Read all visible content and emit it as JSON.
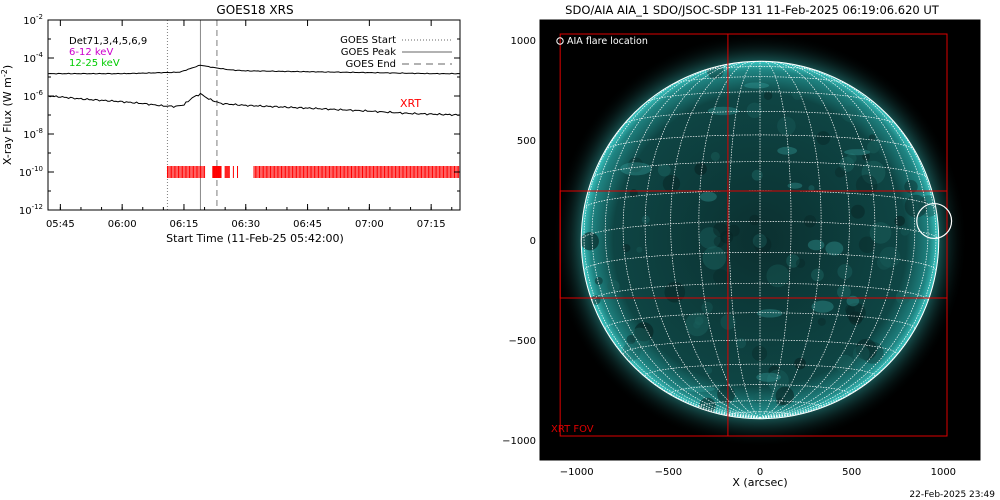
{
  "footer_timestamp": "22-Feb-2025 23:49",
  "chart_data": [
    {
      "type": "line",
      "title": "GOES18 XRS",
      "xlabel": "Start Time (11-Feb-25 05:42:00)",
      "ylabel_main": "X-ray Flux (W m",
      "ylabel_sup": "-2",
      "ylabel_close": ")",
      "y_scale": "log",
      "ylim": [
        1e-12,
        0.01
      ],
      "xlim": [
        "05:42",
        "07:22"
      ],
      "x_ticks": [
        "05:45",
        "06:00",
        "06:15",
        "06:30",
        "06:45",
        "07:00",
        "07:15"
      ],
      "y_ticks": [
        {
          "base": "10",
          "exp": "-2",
          "value": 0.01
        },
        {
          "base": "10",
          "exp": "-4",
          "value": 0.0001
        },
        {
          "base": "10",
          "exp": "-6",
          "value": 1e-06
        },
        {
          "base": "10",
          "exp": "-8",
          "value": 1e-08
        },
        {
          "base": "10",
          "exp": "-10",
          "value": 1e-10
        },
        {
          "base": "10",
          "exp": "-12",
          "value": 1e-12
        }
      ],
      "info_labels": [
        {
          "text": "Det71,3,4,5,6,9",
          "color": "#000000"
        },
        {
          "text": "6-12 keV",
          "color": "#cc00cc"
        },
        {
          "text": "12-25 keV",
          "color": "#00cc00"
        }
      ],
      "legend_position": "top-right",
      "legend": [
        {
          "label": "GOES Start",
          "style": "dotted",
          "time": "06:11"
        },
        {
          "label": "GOES Peak",
          "style": "solid",
          "time": "06:19"
        },
        {
          "label": "GOES End",
          "style": "dashed",
          "time": "06:23"
        }
      ],
      "series": [
        {
          "color": "#000000",
          "x": [
            "05:42",
            "05:50",
            "06:00",
            "06:10",
            "06:14",
            "06:17",
            "06:19",
            "06:22",
            "06:26",
            "06:30",
            "06:45",
            "07:00",
            "07:15",
            "07:22"
          ],
          "y": [
            1.5e-05,
            1.5e-05,
            1.5e-05,
            1.7e-05,
            1.8e-05,
            3e-05,
            4.2e-05,
            3.2e-05,
            2.4e-05,
            2.1e-05,
            1.9e-05,
            1.7e-05,
            1.5e-05,
            1.5e-05
          ]
        },
        {
          "color": "#000000",
          "x": [
            "05:42",
            "05:45",
            "05:50",
            "06:00",
            "06:05",
            "06:10",
            "06:13",
            "06:15",
            "06:17",
            "06:19",
            "06:21",
            "06:24",
            "06:30",
            "06:45",
            "07:00",
            "07:10",
            "07:22"
          ],
          "y": [
            1e-06,
            9e-07,
            7e-07,
            5e-07,
            4e-07,
            3e-07,
            2.8e-07,
            3.5e-07,
            8e-07,
            1.3e-06,
            7e-07,
            4e-07,
            3.2e-07,
            2.3e-07,
            1.6e-07,
            1.2e-07,
            1e-07
          ]
        }
      ],
      "xrt_label": "XRT",
      "xrt_color": "#ff0000",
      "xrt_level": 1e-10,
      "xrt_exposures": [
        {
          "start": "06:11",
          "end": "06:20",
          "interval_s": 20
        },
        {
          "start": "06:22",
          "end": "06:24",
          "interval_s": 10
        },
        {
          "start": "06:25",
          "end": "06:26",
          "interval_s": 15
        },
        {
          "start": "06:27",
          "end": "06:27",
          "interval_s": 20
        },
        {
          "start": "06:28",
          "end": "06:28",
          "interval_s": 20
        },
        {
          "start": "06:32",
          "end": "07:22",
          "interval_s": 20
        }
      ]
    },
    {
      "type": "image",
      "title": "SDO/AIA AIA_1 SDO/JSOC-SDP 131 11-Feb-2025 06:19:06.620 UT",
      "xlabel": "X (arcsec)",
      "xlim": [
        -1200,
        1200
      ],
      "ylim": [
        -1100,
        1100
      ],
      "x_ticks": [
        -1000,
        -500,
        0,
        500,
        1000
      ],
      "y_ticks": [
        1000,
        500,
        0,
        -500,
        -1000
      ],
      "x_tick_labels": [
        "−1000",
        "−500",
        "0",
        "500",
        "1000"
      ],
      "y_tick_labels": [
        "1000",
        "500",
        "0",
        "−500",
        "−1000"
      ],
      "solar_radius_arcsec": 975,
      "disk_color": "#0c3c3c",
      "limb_color": "#36c4c0",
      "grid_color": "#ffffff",
      "grid_spacing_deg": 10,
      "flare_location_label": "AIA flare location",
      "flare_location": {
        "x": 950,
        "y": 95,
        "radius": 95
      },
      "xrt_fov_label": "XRT FOV",
      "xrt_fov_color": "#dd0000",
      "xrt_fov": [
        -1090,
        1030,
        1020,
        -980
      ],
      "xrt_inner_fov": [
        -1090,
        245,
        1020,
        -290
      ],
      "xrt_vertical_line_x": -175
    }
  ]
}
